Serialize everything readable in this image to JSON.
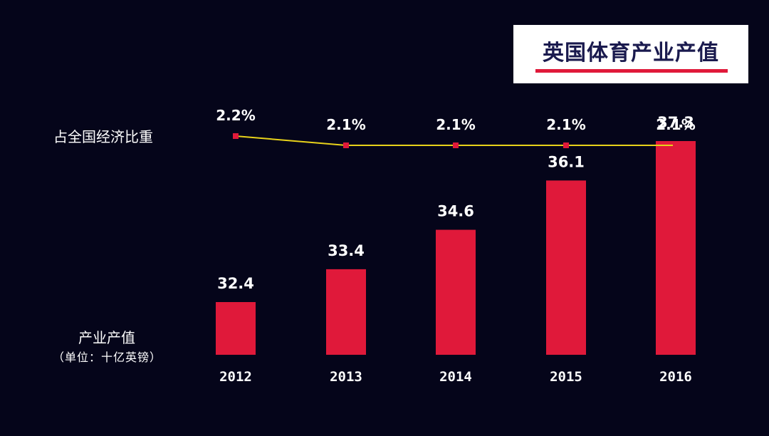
{
  "title": "英国体育产业产值",
  "labels": {
    "share": "占全国经济比重",
    "value": "产业产值",
    "unit": "（单位：十亿英镑）"
  },
  "colors": {
    "background": "#05051a",
    "bar": "#e0193a",
    "line": "#e8d21a",
    "marker": "#e0193a",
    "title_text": "#1a1a4e",
    "text": "#ffffff"
  },
  "chart_data": [
    {
      "type": "bar",
      "categories": [
        "2012",
        "2013",
        "2014",
        "2015",
        "2016"
      ],
      "values": [
        32.4,
        33.4,
        34.6,
        36.1,
        37.3
      ],
      "value_labels": [
        "32.4",
        "33.4",
        "34.6",
        "36.1",
        "37.3"
      ],
      "ylabel": "产业产值（单位：十亿英镑）",
      "grid": false
    },
    {
      "type": "line",
      "categories": [
        "2012",
        "2013",
        "2014",
        "2015",
        "2016"
      ],
      "values": [
        2.2,
        2.1,
        2.1,
        2.1,
        2.1
      ],
      "value_labels": [
        "2.2%",
        "2.1%",
        "2.1%",
        "2.1%",
        "2.1%"
      ],
      "ylabel": "占全国经济比重",
      "grid": false
    }
  ]
}
